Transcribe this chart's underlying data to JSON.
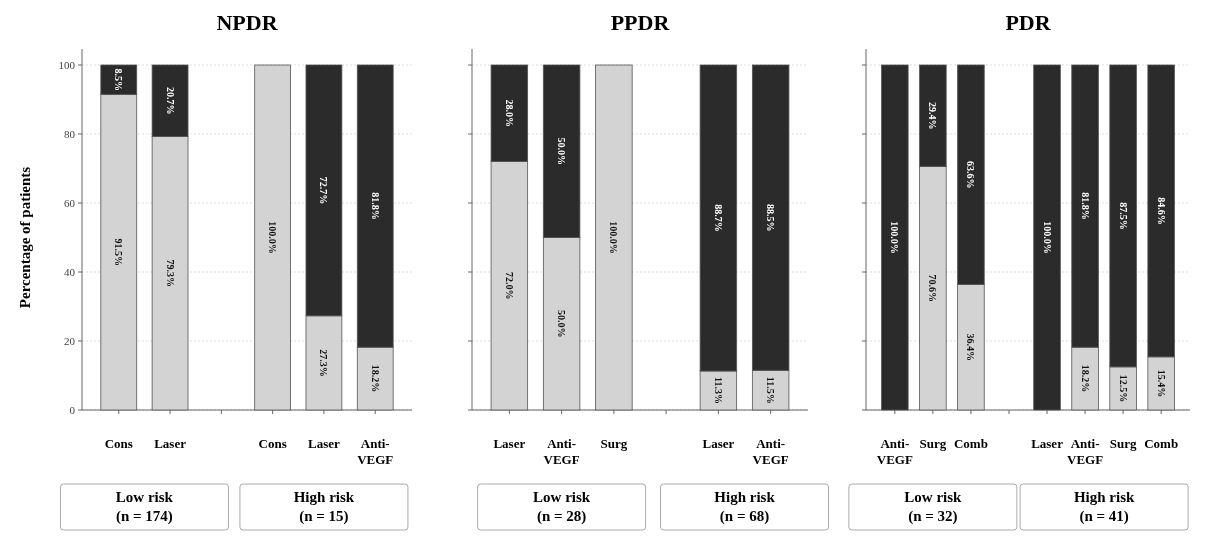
{
  "chart_data": [
    {
      "type": "bar",
      "stacked": true,
      "title": "NPDR",
      "ylabel": "Percentage of patients",
      "categories": [
        "Cons",
        "Laser",
        null,
        "Cons",
        "Laser",
        "Anti-VEGF"
      ],
      "ylim": [
        0,
        100
      ],
      "yticks": [
        0,
        20,
        40,
        60,
        80,
        100
      ],
      "grid": "y",
      "data_labels": true,
      "series": [
        {
          "color": "#d3d3d3",
          "values": [
            91.5,
            79.3,
            null,
            100,
            27.3,
            18.2
          ],
          "value_labels": [
            "91.5%",
            "79.3%",
            null,
            "100.0%",
            "27.3%",
            "18.2%"
          ]
        },
        {
          "color": "#2b2b2b",
          "values": [
            8.5,
            20.7,
            null,
            0,
            72.7,
            81.8
          ],
          "value_labels": [
            "8.5%",
            "20.7%",
            null,
            null,
            "72.7%",
            "81.8%"
          ]
        }
      ],
      "annotations": [
        "Low risk (n = 174)",
        "High risk (n = 15)"
      ]
    },
    {
      "type": "bar",
      "stacked": true,
      "title": "PPDR",
      "categories": [
        "Laser",
        "Anti-VEGF",
        "Surg",
        null,
        "Laser",
        "Anti-VEGF"
      ],
      "ylim": [
        0,
        100
      ],
      "yticks": [
        0,
        20,
        40,
        60,
        80,
        100
      ],
      "grid": "y",
      "tick_labels": "x",
      "data_labels": true,
      "series": [
        {
          "color": "#d3d3d3",
          "values": [
            72.0,
            50.0,
            100,
            null,
            11.3,
            11.5
          ],
          "value_labels": [
            "72.0%",
            "50.0%",
            "100.0%",
            null,
            "11.3%",
            "11.5%"
          ]
        },
        {
          "color": "#2b2b2b",
          "values": [
            28.0,
            50.0,
            0,
            null,
            88.7,
            88.5
          ],
          "value_labels": [
            "28.0%",
            "50.0%",
            null,
            null,
            "88.7%",
            "88.5%"
          ]
        }
      ],
      "annotations": [
        "Low risk (n = 28)",
        "High risk (n = 68)"
      ]
    },
    {
      "type": "bar",
      "stacked": true,
      "title": "PDR",
      "categories": [
        "Anti-VEGF",
        "Surg",
        "Comb",
        null,
        "Laser",
        "Anti-VEGF",
        "Surg",
        "Comb"
      ],
      "ylim": [
        0,
        100
      ],
      "yticks": [
        0,
        20,
        40,
        60,
        80,
        100
      ],
      "grid": "y",
      "tick_labels": "x",
      "data_labels": true,
      "series": [
        {
          "color": "#d3d3d3",
          "values": [
            0,
            70.6,
            36.4,
            null,
            0,
            18.2,
            12.5,
            15.4
          ],
          "value_labels": [
            null,
            "70.6%",
            "36.4%",
            null,
            null,
            "18.2%",
            "12.5%",
            "15.4%"
          ]
        },
        {
          "color": "#2b2b2b",
          "values": [
            100,
            29.4,
            63.6,
            null,
            100,
            81.8,
            87.5,
            84.6
          ],
          "value_labels": [
            "100.0%",
            "29.4%",
            "63.6%",
            null,
            "100.0%",
            "81.8%",
            "87.5%",
            "84.6%"
          ]
        }
      ],
      "annotations": [
        "Low risk (n = 32)",
        "High risk (n = 41)"
      ]
    }
  ]
}
